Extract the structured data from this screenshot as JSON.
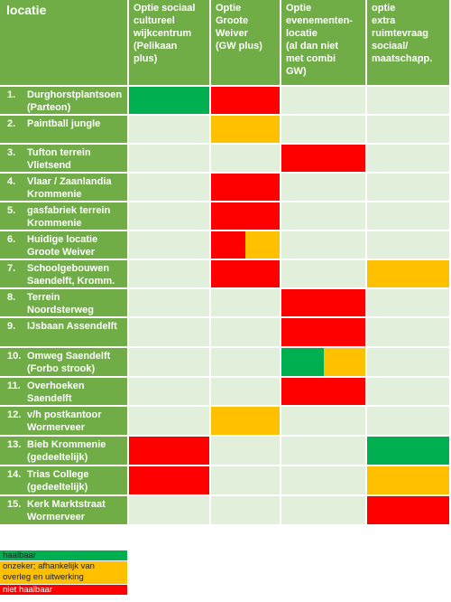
{
  "colors": {
    "header": "#70ad47",
    "empty": "#e2efda",
    "haalbaar": "#00b050",
    "onzeker": "#ffc000",
    "niet_haalbaar": "#ff0000"
  },
  "table": {
    "header": [
      "locatie",
      "Optie sociaal\ncultureel\nwijkcentrum\n(Pelikaan\nplus)",
      "Optie\nGroote\nWeiver\n(GW plus)",
      "Optie\nevenementen-\nlocatie\n(al dan niet\nmet combi\nGW)",
      "optie\nextra\nruimtevraag\nsociaal/\nmaatschapp."
    ],
    "rows": [
      {
        "num": "1.",
        "name": "Durghorstplantsoen\n(Parteon)",
        "cells": [
          [
            "haalbaar"
          ],
          [
            "niet_haalbaar"
          ],
          [],
          []
        ]
      },
      {
        "num": "2.",
        "name": "Paintball jungle",
        "cells": [
          [],
          [
            "onzeker"
          ],
          [],
          []
        ]
      },
      {
        "num": "3.",
        "name": "Tufton terrein\nVlietsend",
        "cells": [
          [],
          [],
          [
            "niet_haalbaar"
          ],
          []
        ]
      },
      {
        "num": "4.",
        "name": "Vlaar / Zaanlandia\nKrommenie",
        "cells": [
          [],
          [
            "niet_haalbaar"
          ],
          [],
          []
        ]
      },
      {
        "num": "5.",
        "name": "gasfabriek terrein\nKrommenie",
        "cells": [
          [],
          [
            "niet_haalbaar"
          ],
          [],
          []
        ]
      },
      {
        "num": "6.",
        "name": "Huidige locatie\nGroote Weiver",
        "cells": [
          [],
          [
            "niet_haalbaar",
            "onzeker"
          ],
          [],
          []
        ]
      },
      {
        "num": "7.",
        "name": "Schoolgebouwen\nSaendelft, Kromm.",
        "cells": [
          [],
          [
            "niet_haalbaar"
          ],
          [],
          [
            "onzeker"
          ]
        ]
      },
      {
        "num": "8.",
        "name": "Terrein\nNoordsterweg",
        "cells": [
          [],
          [],
          [
            "niet_haalbaar"
          ],
          []
        ]
      },
      {
        "num": "9.",
        "name": "IJsbaan Assendelft",
        "cells": [
          [],
          [],
          [
            "niet_haalbaar"
          ],
          []
        ]
      },
      {
        "num": "10.",
        "name": "Omweg Saendelft\n(Forbo strook)",
        "cells": [
          [],
          [],
          [
            "haalbaar",
            "onzeker"
          ],
          []
        ]
      },
      {
        "num": "11.",
        "name": "Overhoeken\nSaendelft",
        "cells": [
          [],
          [],
          [
            "niet_haalbaar"
          ],
          []
        ]
      },
      {
        "num": "12.",
        "name": "v/h postkantoor\nWormerveer",
        "cells": [
          [],
          [
            "onzeker"
          ],
          [],
          []
        ]
      },
      {
        "num": "13.",
        "name": "Bieb Krommenie\n(gedeeltelijk)",
        "cells": [
          [
            "niet_haalbaar"
          ],
          [],
          [],
          [
            "haalbaar"
          ]
        ]
      },
      {
        "num": "14.",
        "name": "Trias College\n(gedeeltelijk)",
        "cells": [
          [
            "niet_haalbaar"
          ],
          [],
          [],
          [
            "onzeker"
          ]
        ]
      },
      {
        "num": "15.",
        "name": "Kerk Marktstraat\nWormerveer",
        "cells": [
          [],
          [],
          [],
          [
            "niet_haalbaar"
          ]
        ]
      }
    ]
  },
  "legend": [
    {
      "key": "haalbaar",
      "label": "haalbaar",
      "text_color": "#222222"
    },
    {
      "key": "onzeker",
      "label": "onzeker; afhankelijk van\noverleg en uitwerking",
      "text_color": "#222222"
    },
    {
      "key": "niet_haalbaar",
      "label": "niet haalbaar",
      "text_color": "#ffffff"
    }
  ]
}
